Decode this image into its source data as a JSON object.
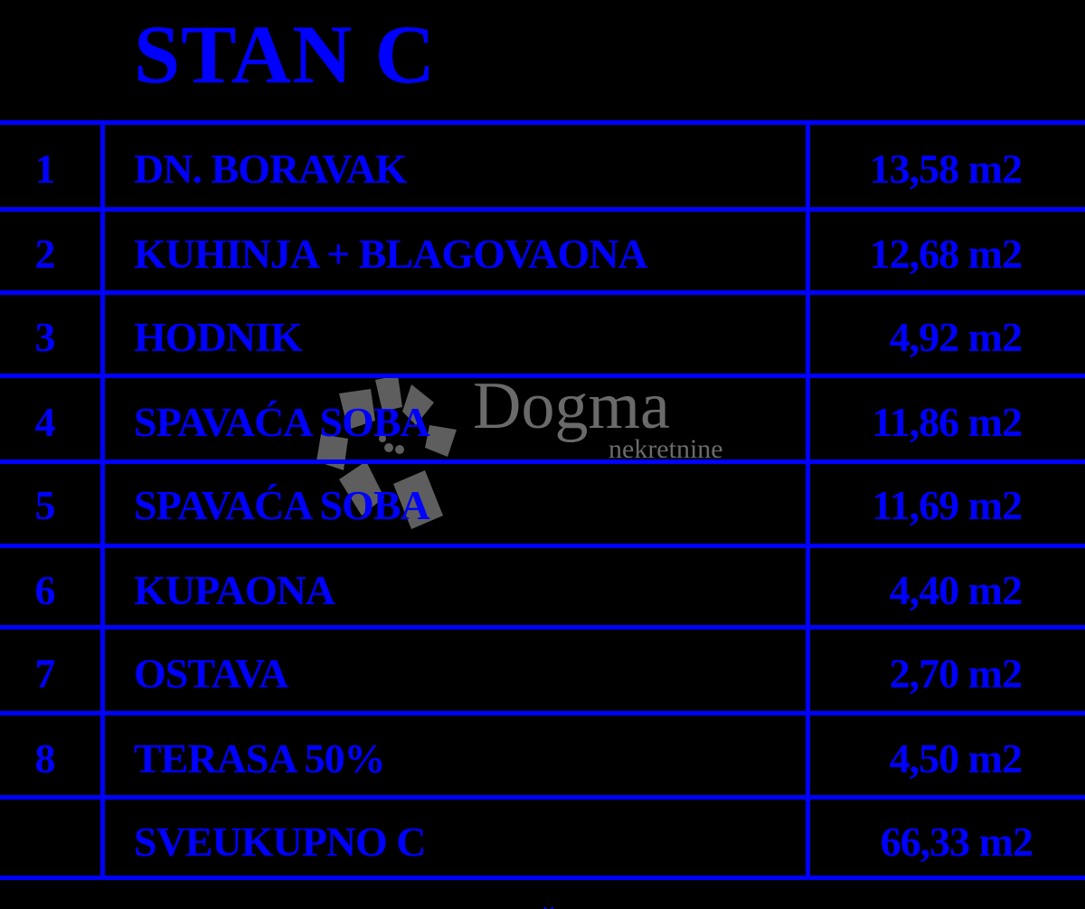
{
  "title": "STAN C",
  "rows": [
    {
      "no": "1",
      "name": "DN. BORAVAK",
      "area": "13,58 m2"
    },
    {
      "no": "2",
      "name": "KUHINJA + BLAGOVAONA",
      "area": "12,68 m2"
    },
    {
      "no": "3",
      "name": "HODNIK",
      "area": "4,92 m2"
    },
    {
      "no": "4",
      "name": "SPAVAĆA SOBA",
      "area": "11,86 m2"
    },
    {
      "no": "5",
      "name": "SPAVAĆA SOBA",
      "area": "11,69 m2"
    },
    {
      "no": "6",
      "name": "KUPAONA",
      "area": "4,40 m2"
    },
    {
      "no": "7",
      "name": "OSTAVA",
      "area": "2,70 m2"
    },
    {
      "no": "8",
      "name": "TERASA 50%",
      "area": "4,50 m2"
    }
  ],
  "total": {
    "name": "SVEUKUPNO C",
    "area": "66,33 m2"
  },
  "watermark": {
    "brand": "Dogma",
    "sub": "nekretnine"
  },
  "colors": {
    "line": "#0000ff",
    "text": "#0000ff",
    "background": "#000000",
    "watermark": "#6a6a6a"
  },
  "icons": {
    "bottom": "chevron-down-icon"
  }
}
